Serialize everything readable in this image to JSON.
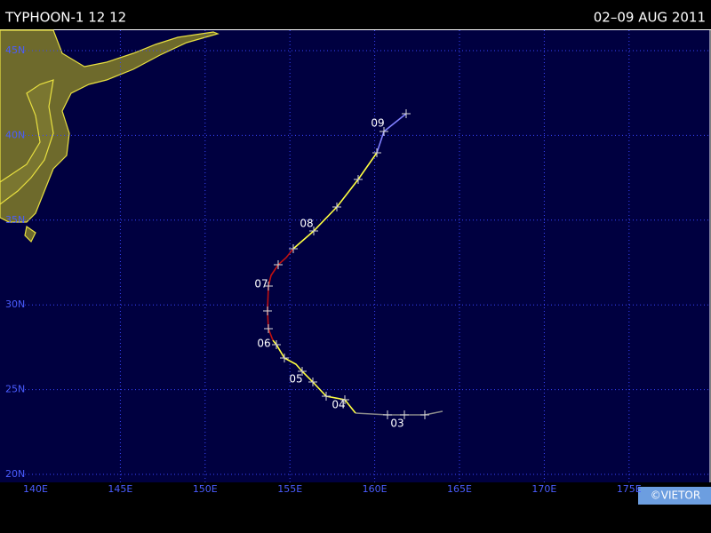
{
  "header": {
    "title": "TYPHOON-1 12 12",
    "period": "02–09 AUG 2011"
  },
  "map": {
    "latitude_labels": [
      "45N",
      "40N",
      "35N",
      "30N",
      "25N",
      "20N"
    ],
    "longitude_labels": [
      "140E",
      "145E",
      "150E",
      "155E",
      "160E",
      "165E",
      "170E",
      "175E"
    ],
    "day_labels": [
      "09",
      "08",
      "07",
      "06",
      "05",
      "04",
      "03"
    ]
  },
  "footer": {
    "credit": "©VIETOR"
  }
}
